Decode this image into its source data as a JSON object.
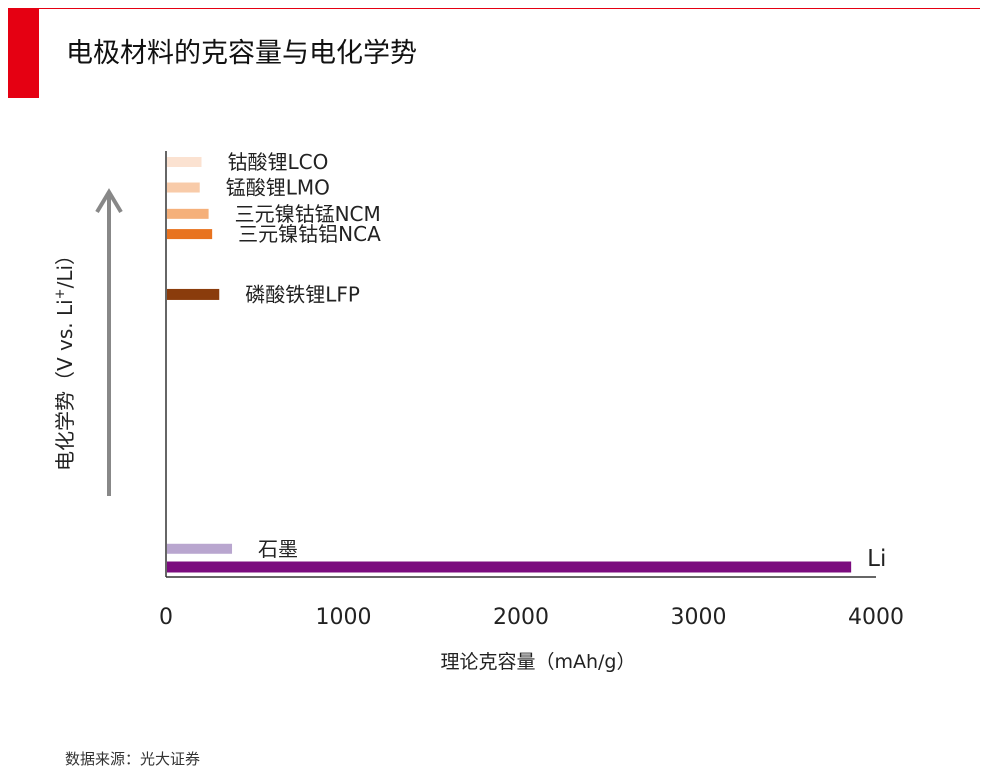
{
  "title": "电极材料的克容量与电化学势",
  "source": "数据来源：光大证券",
  "colors": {
    "accent": "#e50012",
    "axis": "#333333",
    "arrow": "#888888"
  },
  "chart_data": {
    "type": "bar",
    "orientation": "horizontal",
    "xlabel": "理论克容量（mAh/g）",
    "ylabel_prefix": "电化学势（V vs. Li",
    "ylabel_sup": "+",
    "ylabel_suffix": "/Li）",
    "xlim": [
      0,
      4000
    ],
    "xticks": [
      "0",
      "1000",
      "2000",
      "3000",
      "4000"
    ],
    "yaxis_note": "arrow indicates increasing potential; bars ordered top (high potential) to bottom (low potential)",
    "grid": false,
    "series": [
      {
        "label": "钴酸锂LCO",
        "value": 200,
        "color": "#fbe2d1",
        "rank": 0.0
      },
      {
        "label": "锰酸锂LMO",
        "value": 190,
        "color": "#f8cba9",
        "rank": 0.063
      },
      {
        "label": "三元镍钴锰NCM",
        "value": 240,
        "color": "#f5b07a",
        "rank": 0.128
      },
      {
        "label": "三元镍钴铝NCA",
        "value": 260,
        "color": "#e8731f",
        "rank": 0.178
      },
      {
        "label": "磷酸铁锂LFP",
        "value": 300,
        "color": "#8a3c0c",
        "rank": 0.327
      },
      {
        "label": "石墨",
        "value": 372,
        "color": "#b9a6cf",
        "rank": 0.955
      },
      {
        "label": "Li",
        "value": 3860,
        "color": "#7b0c7e",
        "rank": 1.0
      }
    ]
  }
}
